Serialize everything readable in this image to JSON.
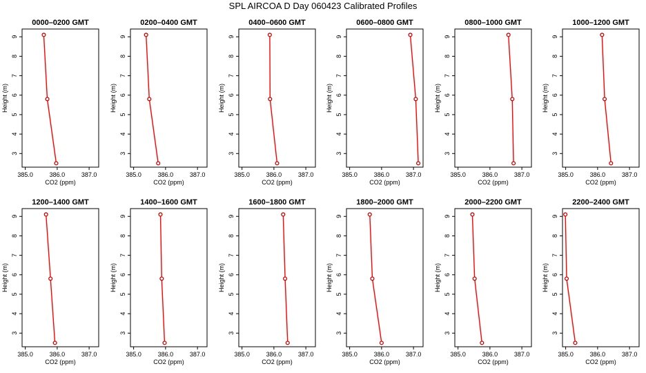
{
  "figure": {
    "title": "SPL AIRCOA D  Day 060423  Calibrated Profiles"
  },
  "colors": {
    "series": "#ff0000",
    "marker": "#cc0000",
    "axis": "#000000"
  },
  "chart_data": [
    {
      "type": "line",
      "title": "0000–0200 GMT",
      "xlabel": "CO2 (ppm)",
      "ylabel": "Height (m)",
      "xlim": [
        384.9,
        387.3
      ],
      "ylim": [
        2.3,
        9.4
      ],
      "x_ticks": [
        "385.0",
        "386.0",
        "387.0"
      ],
      "y_ticks": [
        "3",
        "4",
        "5",
        "6",
        "7",
        "8",
        "9"
      ],
      "grid": false,
      "series": [
        {
          "x": [
            385.58,
            385.69,
            385.97
          ],
          "y": [
            9.1,
            5.8,
            2.5
          ]
        }
      ]
    },
    {
      "type": "line",
      "title": "0200–0400 GMT",
      "xlabel": "CO2 (ppm)",
      "ylabel": "Height (m)",
      "xlim": [
        384.9,
        387.3
      ],
      "ylim": [
        2.3,
        9.4
      ],
      "x_ticks": [
        "385.0",
        "386.0",
        "387.0"
      ],
      "y_ticks": [
        "3",
        "4",
        "5",
        "6",
        "7",
        "8",
        "9"
      ],
      "grid": false,
      "series": [
        {
          "x": [
            385.39,
            385.49,
            385.77
          ],
          "y": [
            9.1,
            5.8,
            2.5
          ]
        }
      ]
    },
    {
      "type": "line",
      "title": "0400–0600 GMT",
      "xlabel": "CO2 (ppm)",
      "ylabel": "Height (m)",
      "xlim": [
        384.9,
        387.3
      ],
      "ylim": [
        2.3,
        9.4
      ],
      "x_ticks": [
        "385.0",
        "386.0",
        "387.0"
      ],
      "y_ticks": [
        "3",
        "4",
        "5",
        "6",
        "7",
        "8",
        "9"
      ],
      "grid": false,
      "series": [
        {
          "x": [
            385.87,
            385.88,
            386.1
          ],
          "y": [
            9.1,
            5.8,
            2.5
          ]
        }
      ]
    },
    {
      "type": "line",
      "title": "0600–0800 GMT",
      "xlabel": "CO2 (ppm)",
      "ylabel": "Height (m)",
      "xlim": [
        384.9,
        387.3
      ],
      "ylim": [
        2.3,
        9.4
      ],
      "x_ticks": [
        "385.0",
        "386.0",
        "387.0"
      ],
      "y_ticks": [
        "3",
        "4",
        "5",
        "6",
        "7",
        "8",
        "9"
      ],
      "grid": false,
      "series": [
        {
          "x": [
            386.9,
            387.07,
            387.15
          ],
          "y": [
            9.1,
            5.8,
            2.5
          ]
        }
      ]
    },
    {
      "type": "line",
      "title": "0800–1000 GMT",
      "xlabel": "CO2 (ppm)",
      "ylabel": "Height (m)",
      "xlim": [
        384.9,
        387.3
      ],
      "ylim": [
        2.3,
        9.4
      ],
      "x_ticks": [
        "385.0",
        "386.0",
        "387.0"
      ],
      "y_ticks": [
        "3",
        "4",
        "5",
        "6",
        "7",
        "8",
        "9"
      ],
      "grid": false,
      "series": [
        {
          "x": [
            386.58,
            386.7,
            386.74
          ],
          "y": [
            9.1,
            5.8,
            2.5
          ]
        }
      ]
    },
    {
      "type": "line",
      "title": "1000–1200 GMT",
      "xlabel": "CO2 (ppm)",
      "ylabel": "Height (m)",
      "xlim": [
        384.9,
        387.3
      ],
      "ylim": [
        2.3,
        9.4
      ],
      "x_ticks": [
        "385.0",
        "386.0",
        "387.0"
      ],
      "y_ticks": [
        "3",
        "4",
        "5",
        "6",
        "7",
        "8",
        "9"
      ],
      "grid": false,
      "series": [
        {
          "x": [
            386.14,
            386.22,
            386.42
          ],
          "y": [
            9.1,
            5.8,
            2.5
          ]
        }
      ]
    },
    {
      "type": "line",
      "title": "1200–1400 GMT",
      "xlabel": "CO2 (ppm)",
      "ylabel": "Height (m)",
      "xlim": [
        384.9,
        387.3
      ],
      "ylim": [
        2.3,
        9.4
      ],
      "x_ticks": [
        "385.0",
        "386.0",
        "387.0"
      ],
      "y_ticks": [
        "3",
        "4",
        "5",
        "6",
        "7",
        "8",
        "9"
      ],
      "grid": false,
      "series": [
        {
          "x": [
            385.65,
            385.79,
            385.93
          ],
          "y": [
            9.1,
            5.8,
            2.5
          ]
        }
      ]
    },
    {
      "type": "line",
      "title": "1400–1600 GMT",
      "xlabel": "CO2 (ppm)",
      "ylabel": "Height (m)",
      "xlim": [
        384.9,
        387.3
      ],
      "ylim": [
        2.3,
        9.4
      ],
      "x_ticks": [
        "385.0",
        "386.0",
        "387.0"
      ],
      "y_ticks": [
        "3",
        "4",
        "5",
        "6",
        "7",
        "8",
        "9"
      ],
      "grid": false,
      "series": [
        {
          "x": [
            385.84,
            385.88,
            385.97
          ],
          "y": [
            9.1,
            5.8,
            2.5
          ]
        }
      ]
    },
    {
      "type": "line",
      "title": "1600–1800 GMT",
      "xlabel": "CO2 (ppm)",
      "ylabel": "Height (m)",
      "xlim": [
        384.9,
        387.3
      ],
      "ylim": [
        2.3,
        9.4
      ],
      "x_ticks": [
        "385.0",
        "386.0",
        "387.0"
      ],
      "y_ticks": [
        "3",
        "4",
        "5",
        "6",
        "7",
        "8",
        "9"
      ],
      "grid": false,
      "series": [
        {
          "x": [
            386.29,
            386.35,
            386.43
          ],
          "y": [
            9.1,
            5.8,
            2.5
          ]
        }
      ]
    },
    {
      "type": "line",
      "title": "1800–2000 GMT",
      "xlabel": "CO2 (ppm)",
      "ylabel": "Height (m)",
      "xlim": [
        384.9,
        387.3
      ],
      "ylim": [
        2.3,
        9.4
      ],
      "x_ticks": [
        "385.0",
        "386.0",
        "387.0"
      ],
      "y_ticks": [
        "3",
        "4",
        "5",
        "6",
        "7",
        "8",
        "9"
      ],
      "grid": false,
      "series": [
        {
          "x": [
            385.63,
            385.71,
            386.0
          ],
          "y": [
            9.1,
            5.8,
            2.5
          ]
        }
      ]
    },
    {
      "type": "line",
      "title": "2000–2200 GMT",
      "xlabel": "CO2 (ppm)",
      "ylabel": "Height (m)",
      "xlim": [
        384.9,
        387.3
      ],
      "ylim": [
        2.3,
        9.4
      ],
      "x_ticks": [
        "385.0",
        "386.0",
        "387.0"
      ],
      "y_ticks": [
        "3",
        "4",
        "5",
        "6",
        "7",
        "8",
        "9"
      ],
      "grid": false,
      "series": [
        {
          "x": [
            385.45,
            385.52,
            385.75
          ],
          "y": [
            9.1,
            5.8,
            2.5
          ]
        }
      ]
    },
    {
      "type": "line",
      "title": "2200–2400 GMT",
      "xlabel": "CO2 (ppm)",
      "ylabel": "Height (m)",
      "xlim": [
        384.9,
        387.3
      ],
      "ylim": [
        2.3,
        9.4
      ],
      "x_ticks": [
        "385.0",
        "386.0",
        "387.0"
      ],
      "y_ticks": [
        "3",
        "4",
        "5",
        "6",
        "7",
        "8",
        "9"
      ],
      "grid": false,
      "series": [
        {
          "x": [
            384.99,
            385.03,
            385.3
          ],
          "y": [
            9.1,
            5.8,
            2.5
          ]
        }
      ]
    }
  ]
}
